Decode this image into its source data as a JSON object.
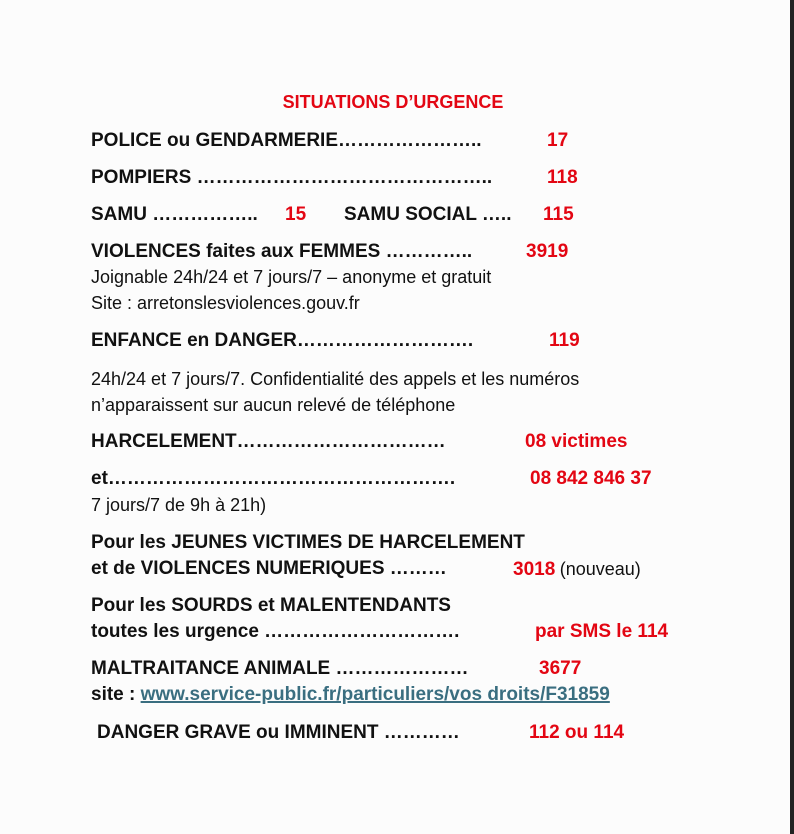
{
  "title": "SITUATIONS D’URGENCE",
  "colors": {
    "accent": "#e30613",
    "text": "#111111",
    "link": "#3a6e80"
  },
  "entries": {
    "police": {
      "label": "POLICE ou GENDARMERIE…………………..",
      "number": "17"
    },
    "pompiers": {
      "label": "POMPIERS ………………………………………..",
      "number": "118"
    },
    "samu": {
      "label": "SAMU ……………..",
      "number": "15"
    },
    "samu_social": {
      "label": "SAMU SOCIAL …..",
      "number": "115"
    },
    "violences": {
      "label": "VIOLENCES faites aux FEMMES …………..",
      "number": "3919",
      "note1": "Joignable 24h/24 et 7 jours/7 – anonyme et gratuit",
      "note2": "Site : arretonslesviolences.gouv.fr"
    },
    "enfance": {
      "label": "ENFANCE en DANGER……………………….",
      "number": "119",
      "note1": "24h/24 et 7 jours/7. Confidentialité des appels et les numéros",
      "note2": "n’apparaissent sur aucun relevé de téléphone"
    },
    "harcelement": {
      "label": "HARCELEMENT……………………………",
      "number": "08 victimes"
    },
    "harcelement_et": {
      "label": "et……………………………………………….",
      "number": "08 842 846 37",
      "note": "7 jours/7 de 9h à 21h)"
    },
    "jeunes": {
      "line1": "Pour les JEUNES VICTIMES DE HARCELEMENT",
      "line2": "et de VIOLENCES NUMERIQUES ………",
      "number": "3018",
      "suffix": "(nouveau)"
    },
    "sourds": {
      "line1": "Pour les SOURDS et MALENTENDANTS",
      "line2": "toutes les urgence ………………………….",
      "number": "par SMS le 114"
    },
    "animale": {
      "label": "MALTRAITANCE ANIMALE …………………",
      "number": "3677",
      "site_label": "site : ",
      "site_link": "www.service-public.fr/particuliers/vos droits/F31859"
    },
    "danger": {
      "label": "DANGER GRAVE ou IMMINENT  …………",
      "number": "112 ou 114"
    }
  }
}
